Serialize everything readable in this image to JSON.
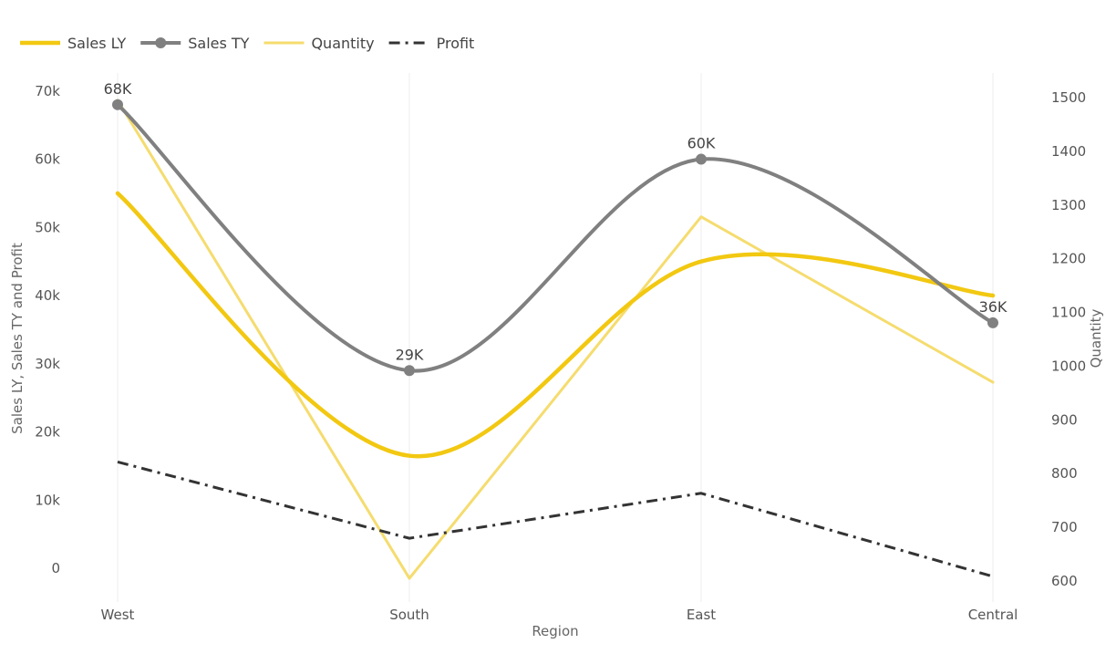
{
  "chart_data": {
    "type": "line",
    "categories": [
      "West",
      "South",
      "East",
      "Central"
    ],
    "xlabel": "Region",
    "ylabel": "Sales LY, Sales TY and Profit",
    "y2label": "Quantity",
    "ylim": [
      -5000,
      72000
    ],
    "y2lim": [
      550,
      1540
    ],
    "y_ticks": [
      {
        "value": 0,
        "label": "0"
      },
      {
        "value": 10000,
        "label": "10k"
      },
      {
        "value": 20000,
        "label": "20k"
      },
      {
        "value": 30000,
        "label": "30k"
      },
      {
        "value": 40000,
        "label": "40k"
      },
      {
        "value": 50000,
        "label": "50k"
      },
      {
        "value": 60000,
        "label": "60k"
      },
      {
        "value": 70000,
        "label": "70k"
      }
    ],
    "y2_ticks": [
      {
        "value": 600,
        "label": "600"
      },
      {
        "value": 700,
        "label": "700"
      },
      {
        "value": 800,
        "label": "800"
      },
      {
        "value": 900,
        "label": "900"
      },
      {
        "value": 1000,
        "label": "1000"
      },
      {
        "value": 1100,
        "label": "1100"
      },
      {
        "value": 1200,
        "label": "1200"
      },
      {
        "value": 1300,
        "label": "1300"
      },
      {
        "value": 1400,
        "label": "1400"
      },
      {
        "value": 1500,
        "label": "1500"
      }
    ],
    "grid": "vertical",
    "legend": "top-left",
    "series": [
      {
        "name": "Sales LY",
        "axis": "left",
        "values": [
          55000,
          16500,
          45000,
          40000
        ],
        "color": "#F2C811",
        "style": "smooth-thick"
      },
      {
        "name": "Sales TY",
        "axis": "left",
        "values": [
          68000,
          29000,
          60000,
          36000
        ],
        "color": "#808080",
        "style": "smooth-markers",
        "data_labels": [
          "68K",
          "29K",
          "60K",
          "36K"
        ]
      },
      {
        "name": "Quantity",
        "axis": "right",
        "values": [
          1495,
          605,
          1278,
          970
        ],
        "color": "#F5DC6E",
        "style": "straight"
      },
      {
        "name": "Profit",
        "axis": "left",
        "values": [
          15600,
          4400,
          11000,
          -1200
        ],
        "color": "#333333",
        "style": "dashdot"
      }
    ]
  }
}
